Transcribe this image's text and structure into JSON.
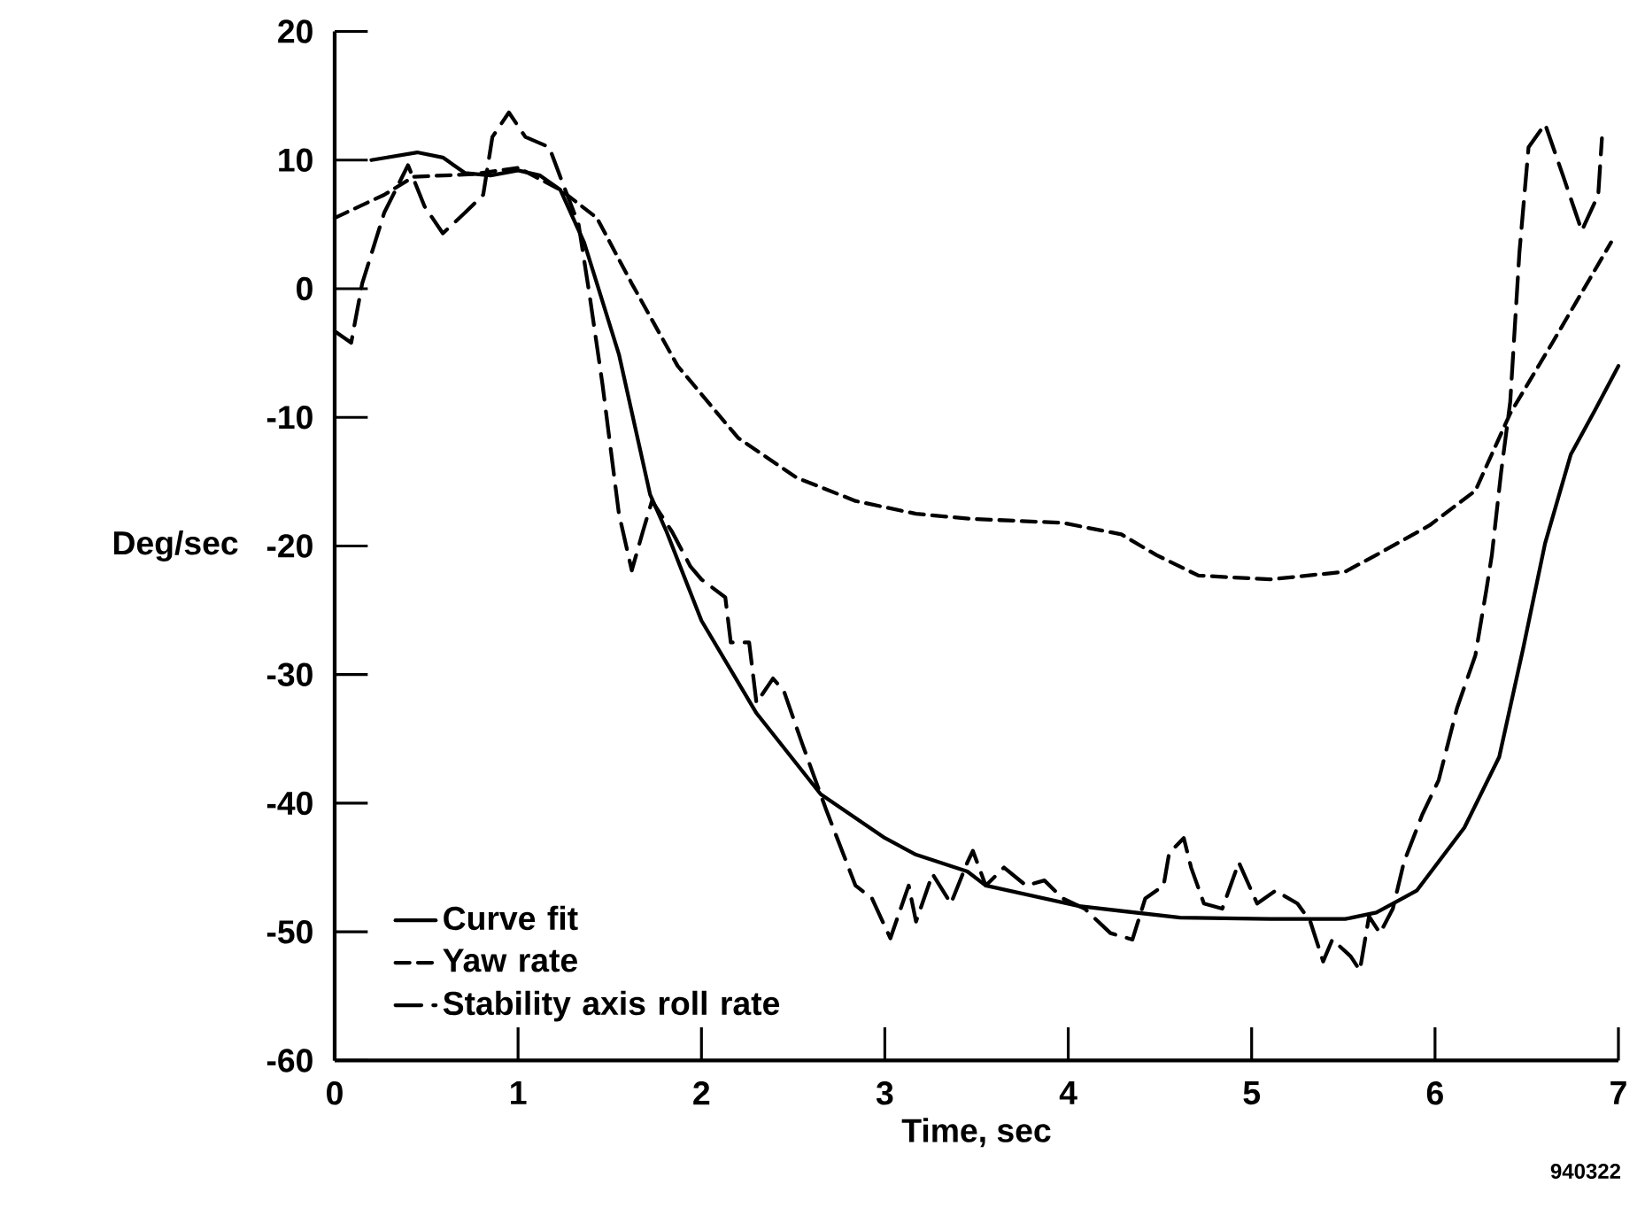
{
  "chart_data": {
    "type": "line",
    "xlabel": "Time, sec",
    "ylabel": "Deg/sec",
    "xlim": [
      0,
      7
    ],
    "ylim": [
      -60,
      20
    ],
    "xticks": [
      0,
      1,
      2,
      3,
      4,
      5,
      6,
      7
    ],
    "yticks": [
      -60,
      -50,
      -40,
      -30,
      -20,
      -10,
      0,
      10,
      20
    ],
    "grid": false,
    "legend": "bottom left",
    "annotations": [
      "940322"
    ],
    "series": [
      {
        "name": "Curve fit",
        "color": "#000000",
        "line_style": "solid",
        "x": [
          0.2,
          0.45,
          0.59,
          0.71,
          0.85,
          1.0,
          1.12,
          1.23,
          1.36,
          1.43,
          1.55,
          1.72,
          1.81,
          2.0,
          2.3,
          2.65,
          3.0,
          3.17,
          3.45,
          3.55,
          4.06,
          4.61,
          5.1,
          5.51,
          5.68,
          5.9,
          6.16,
          6.35,
          6.48,
          6.6,
          6.74,
          6.87,
          7.0
        ],
        "values": [
          10,
          10.6,
          10.2,
          9.0,
          8.8,
          9.2,
          8.8,
          7.7,
          3.6,
          0.4,
          -5.1,
          -16,
          -18.9,
          -25.8,
          -33,
          -39.3,
          -42.7,
          -44,
          -45.3,
          -46.4,
          -48,
          -48.9,
          -49.0,
          -49,
          -48.5,
          -46.8,
          -41.9,
          -36.4,
          -28,
          -19.8,
          -12.9,
          -9.5,
          -6.0
        ]
      },
      {
        "name": "Yaw rate",
        "color": "#000000",
        "line_style": "dashed",
        "x": [
          0,
          0.27,
          0.43,
          0.75,
          1.0,
          1.23,
          1.43,
          1.62,
          1.87,
          2.2,
          2.52,
          2.84,
          3.17,
          3.48,
          3.97,
          4.29,
          4.48,
          4.71,
          5.1,
          5.51,
          5.68,
          5.97,
          6.22,
          6.41,
          6.64,
          6.96
        ],
        "values": [
          5.5,
          7.3,
          8.7,
          8.9,
          9.4,
          7.7,
          5.5,
          0.4,
          -6,
          -11.6,
          -14.7,
          -16.5,
          -17.5,
          -17.9,
          -18.2,
          -19.1,
          -20.7,
          -22.3,
          -22.6,
          -22,
          -20.7,
          -18.4,
          -15.7,
          -9.7,
          -4.2,
          3.6
        ]
      },
      {
        "name": "Stability axis roll rate",
        "color": "#000000",
        "line_style": "dashed",
        "x": [
          0,
          0.09,
          0.15,
          0.27,
          0.4,
          0.49,
          0.59,
          0.71,
          0.81,
          0.86,
          0.95,
          1.04,
          1.17,
          1.23,
          1.33,
          1.39,
          1.46,
          1.55,
          1.62,
          1.68,
          1.73,
          1.84,
          1.94,
          2.0,
          2.13,
          2.16,
          2.26,
          2.3,
          2.39,
          2.45,
          2.55,
          2.68,
          2.84,
          2.93,
          3.03,
          3.13,
          3.17,
          3.26,
          3.36,
          3.45,
          3.48,
          3.55,
          3.65,
          3.77,
          3.87,
          3.97,
          4.09,
          4.23,
          4.35,
          4.42,
          4.52,
          4.55,
          4.63,
          4.67,
          4.74,
          4.84,
          4.93,
          5.03,
          5.13,
          5.25,
          5.32,
          5.39,
          5.44,
          5.54,
          5.59,
          5.64,
          5.7,
          5.77,
          5.83,
          5.93,
          6.02,
          6.12,
          6.22,
          6.28,
          6.31,
          6.36,
          6.41,
          6.46,
          6.51,
          6.6,
          6.7,
          6.8,
          6.89,
          6.91
        ],
        "values": [
          -3.3,
          -4.2,
          0.4,
          5.9,
          9.6,
          6.4,
          4.3,
          5.9,
          7.3,
          11.8,
          13.7,
          11.8,
          11,
          8.7,
          5,
          -0.5,
          -7.4,
          -17.5,
          -21.9,
          -18.9,
          -16.5,
          -18.9,
          -21.6,
          -22.6,
          -24,
          -27.5,
          -27.5,
          -32.2,
          -30.3,
          -31.3,
          -35.4,
          -40.5,
          -46.4,
          -47.4,
          -50.5,
          -46.4,
          -49.2,
          -45.5,
          -47.8,
          -44.6,
          -43.7,
          -46.4,
          -45,
          -46.4,
          -46,
          -47.4,
          -48.2,
          -50.1,
          -50.6,
          -47.4,
          -46.4,
          -43.9,
          -42.7,
          -45,
          -47.8,
          -48.2,
          -44.6,
          -47.8,
          -46.8,
          -47.8,
          -49.2,
          -52.3,
          -50.6,
          -51.9,
          -53,
          -48.8,
          -50.1,
          -48.2,
          -44.6,
          -40.9,
          -38.2,
          -32.6,
          -28.5,
          -23.4,
          -20.7,
          -14.3,
          -8.8,
          2.8,
          11,
          12.8,
          8.7,
          4.5,
          7.3,
          11.7
        ]
      }
    ]
  }
}
